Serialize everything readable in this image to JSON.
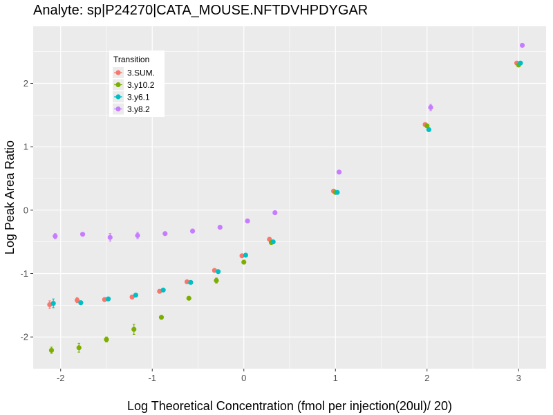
{
  "chart_data": {
    "type": "scatter",
    "title": "Analyte: sp|P24270|CATA_MOUSE.NFTDVHPDYGAR",
    "xlabel": "Log Theoretical Concentration (fmol per injection(20ul)/ 20)",
    "ylabel": "Log Peak Area Ratio",
    "xlim": [
      -2.3,
      3.3
    ],
    "ylim": [
      -2.5,
      2.9
    ],
    "x_ticks": [
      -2,
      -1,
      0,
      1,
      2,
      3
    ],
    "y_ticks": [
      -2,
      -1,
      0,
      1,
      2
    ],
    "grid": true,
    "legend_title": "Transition",
    "legend_position": "top-left",
    "series": [
      {
        "name": "3.SUM.",
        "color": "#F8766D",
        "points": [
          {
            "x": -2.12,
            "y": -1.49,
            "err": 0.06
          },
          {
            "x": -1.82,
            "y": -1.42,
            "err": 0.04
          },
          {
            "x": -1.52,
            "y": -1.41,
            "err": 0.03
          },
          {
            "x": -1.22,
            "y": -1.37,
            "err": 0.03
          },
          {
            "x": -0.92,
            "y": -1.28,
            "err": 0.02
          },
          {
            "x": -0.62,
            "y": -1.13,
            "err": 0.02
          },
          {
            "x": -0.32,
            "y": -0.95,
            "err": 0.02
          },
          {
            "x": -0.02,
            "y": -0.72,
            "err": 0.02
          },
          {
            "x": 0.28,
            "y": -0.46,
            "err": 0.02
          },
          {
            "x": 0.98,
            "y": 0.3,
            "err": 0.01
          },
          {
            "x": 1.98,
            "y": 1.35,
            "err": 0.01
          },
          {
            "x": 2.98,
            "y": 2.32,
            "err": 0.01
          }
        ]
      },
      {
        "name": "3.y10.2",
        "color": "#7CAE00",
        "points": [
          {
            "x": -2.1,
            "y": -2.21,
            "err": 0.05
          },
          {
            "x": -1.8,
            "y": -2.17,
            "err": 0.07
          },
          {
            "x": -1.5,
            "y": -2.04,
            "err": 0.04
          },
          {
            "x": -1.2,
            "y": -1.88,
            "err": 0.08
          },
          {
            "x": -0.9,
            "y": -1.69,
            "err": 0.02
          },
          {
            "x": -0.6,
            "y": -1.39,
            "err": 0.02
          },
          {
            "x": -0.3,
            "y": -1.11,
            "err": 0.04
          },
          {
            "x": 0.0,
            "y": -0.82,
            "err": 0.03
          },
          {
            "x": 0.3,
            "y": -0.51,
            "err": 0.02
          },
          {
            "x": 1.0,
            "y": 0.28,
            "err": 0.01
          },
          {
            "x": 2.0,
            "y": 1.33,
            "err": 0.01
          },
          {
            "x": 3.0,
            "y": 2.29,
            "err": 0.01
          }
        ]
      },
      {
        "name": "3.y6.1",
        "color": "#00BFC4",
        "points": [
          {
            "x": -2.08,
            "y": -1.47,
            "err": 0.07
          },
          {
            "x": -1.78,
            "y": -1.46,
            "err": 0.03
          },
          {
            "x": -1.48,
            "y": -1.4,
            "err": 0.03
          },
          {
            "x": -1.18,
            "y": -1.34,
            "err": 0.02
          },
          {
            "x": -0.88,
            "y": -1.26,
            "err": 0.02
          },
          {
            "x": -0.58,
            "y": -1.14,
            "err": 0.02
          },
          {
            "x": -0.28,
            "y": -0.97,
            "err": 0.02
          },
          {
            "x": 0.02,
            "y": -0.71,
            "err": 0.02
          },
          {
            "x": 0.32,
            "y": -0.5,
            "err": 0.02
          },
          {
            "x": 1.02,
            "y": 0.28,
            "err": 0.01
          },
          {
            "x": 2.02,
            "y": 1.27,
            "err": 0.01
          },
          {
            "x": 3.02,
            "y": 2.32,
            "err": 0.01
          }
        ]
      },
      {
        "name": "3.y8.2",
        "color": "#C77CFF",
        "points": [
          {
            "x": -2.06,
            "y": -0.41,
            "err": 0.04
          },
          {
            "x": -1.76,
            "y": -0.38,
            "err": 0.02
          },
          {
            "x": -1.46,
            "y": -0.43,
            "err": 0.06
          },
          {
            "x": -1.16,
            "y": -0.4,
            "err": 0.05
          },
          {
            "x": -0.86,
            "y": -0.37,
            "err": 0.02
          },
          {
            "x": -0.56,
            "y": -0.33,
            "err": 0.03
          },
          {
            "x": -0.26,
            "y": -0.27,
            "err": 0.02
          },
          {
            "x": 0.04,
            "y": -0.17,
            "err": 0.02
          },
          {
            "x": 0.34,
            "y": -0.04,
            "err": 0.03
          },
          {
            "x": 1.04,
            "y": 0.6,
            "err": 0.02
          },
          {
            "x": 2.04,
            "y": 1.62,
            "err": 0.05
          },
          {
            "x": 3.04,
            "y": 2.6,
            "err": 0.01
          }
        ]
      }
    ]
  }
}
